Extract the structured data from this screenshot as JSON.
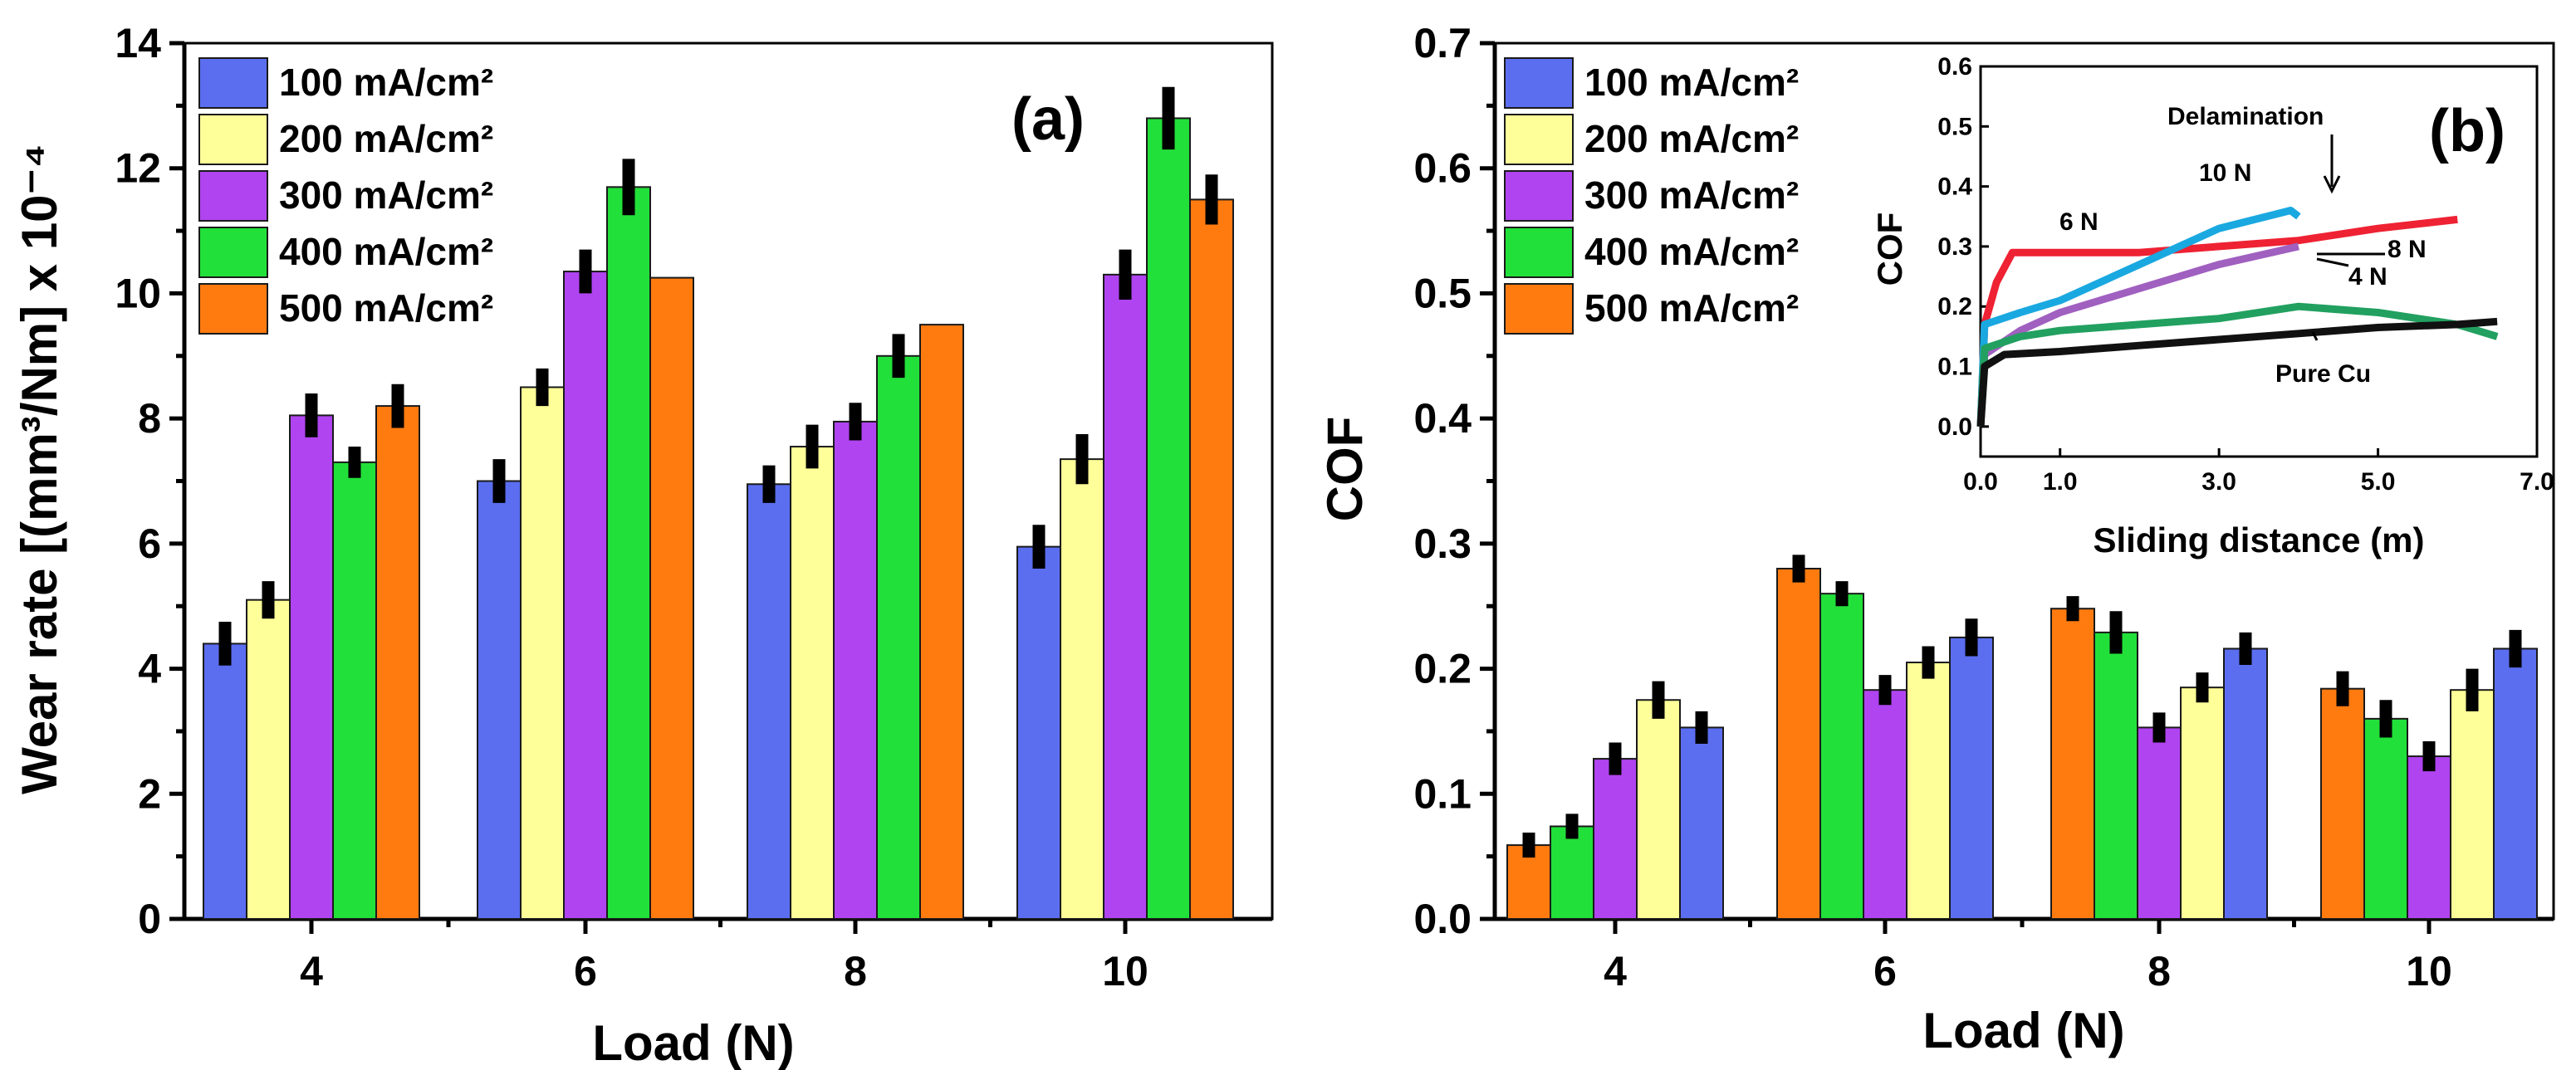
{
  "chart_data": [
    {
      "type": "bar",
      "panel_label": "(a)",
      "categories": [
        "4",
        "6",
        "8",
        "10"
      ],
      "xlabel": "Load (N)",
      "ylabel": "Wear rate [(mm³/Nm] x 10⁻⁴",
      "ylim": [
        0,
        14
      ],
      "yticks": [
        "0",
        "2",
        "4",
        "6",
        "8",
        "10",
        "12",
        "14"
      ],
      "series": [
        {
          "name": "100 mA/cm²",
          "color": "#5b6ef0",
          "values": [
            4.4,
            7.0,
            6.95,
            5.95
          ],
          "errors": [
            0.35,
            0.35,
            0.3,
            0.35
          ]
        },
        {
          "name": "200 mA/cm²",
          "color": "#ffff99",
          "values": [
            5.1,
            8.5,
            7.55,
            7.35
          ],
          "errors": [
            0.3,
            0.3,
            0.35,
            0.4
          ]
        },
        {
          "name": "300 mA/cm²",
          "color": "#b044f0",
          "values": [
            8.05,
            10.35,
            7.95,
            10.3
          ],
          "errors": [
            0.35,
            0.35,
            0.3,
            0.4
          ]
        },
        {
          "name": "400 mA/cm²",
          "color": "#22e03a",
          "values": [
            7.3,
            11.7,
            9.0,
            12.8
          ],
          "errors": [
            0.25,
            0.45,
            0.35,
            0.5
          ]
        },
        {
          "name": "500 mA/cm²",
          "color": "#ff7b10",
          "values": [
            8.2,
            10.25,
            9.5,
            11.5
          ],
          "errors": [
            0.35,
            0.0,
            0.0,
            0.4
          ]
        }
      ],
      "legend": "top-left"
    },
    {
      "type": "bar",
      "panel_label": "(b)",
      "categories": [
        "4",
        "6",
        "8",
        "10"
      ],
      "xlabel": "Load (N)",
      "ylabel": "COF",
      "ylim": [
        0,
        0.7
      ],
      "yticks": [
        "0.0",
        "0.1",
        "0.2",
        "0.3",
        "0.4",
        "0.5",
        "0.6",
        "0.7"
      ],
      "bar_order_within_group": [
        "500 mA/cm²",
        "400 mA/cm²",
        "300 mA/cm²",
        "200 mA/cm²",
        "100 mA/cm²"
      ],
      "series": [
        {
          "name": "100 mA/cm²",
          "color": "#5b6ef0",
          "values": [
            0.153,
            0.225,
            0.216,
            0.216
          ],
          "errors": [
            0.013,
            0.015,
            0.013,
            0.015
          ]
        },
        {
          "name": "200 mA/cm²",
          "color": "#ffff99",
          "values": [
            0.175,
            0.205,
            0.185,
            0.183
          ],
          "errors": [
            0.015,
            0.013,
            0.012,
            0.017
          ]
        },
        {
          "name": "300 mA/cm²",
          "color": "#b044f0",
          "values": [
            0.128,
            0.183,
            0.153,
            0.13
          ],
          "errors": [
            0.013,
            0.012,
            0.012,
            0.012
          ]
        },
        {
          "name": "400 mA/cm²",
          "color": "#22e03a",
          "values": [
            0.074,
            0.26,
            0.229,
            0.16
          ],
          "errors": [
            0.01,
            0.01,
            0.017,
            0.015
          ]
        },
        {
          "name": "500 mA/cm²",
          "color": "#ff7b10",
          "values": [
            0.059,
            0.28,
            0.248,
            0.184
          ],
          "errors": [
            0.01,
            0.011,
            0.01,
            0.014
          ]
        }
      ],
      "legend": "top-left"
    },
    {
      "type": "line",
      "role": "inset of panel (b)",
      "xlabel": "Sliding distance (m)",
      "ylabel": "COF",
      "xlim": [
        0,
        7.0
      ],
      "ylim": [
        -0.05,
        0.6
      ],
      "xticks": [
        "0.0",
        "1.0",
        "3.0",
        "5.0",
        "7.0"
      ],
      "yticks": [
        "0.0",
        "0.1",
        "0.2",
        "0.3",
        "0.4",
        "0.5",
        "0.6"
      ],
      "series": [
        {
          "name": "6 N",
          "color": "#ee2233",
          "x": [
            0.0,
            0.05,
            0.2,
            0.4,
            1.0,
            2.0,
            3.0,
            4.0,
            5.0,
            6.0
          ],
          "y": [
            0.0,
            0.17,
            0.24,
            0.29,
            0.29,
            0.29,
            0.3,
            0.31,
            0.33,
            0.345
          ]
        },
        {
          "name": "10 N",
          "color": "#1aa8e0",
          "x": [
            0.0,
            0.05,
            0.5,
            1.0,
            2.0,
            3.0,
            3.6,
            3.9,
            4.0
          ],
          "y": [
            0.0,
            0.17,
            0.19,
            0.21,
            0.27,
            0.33,
            0.35,
            0.36,
            0.35
          ]
        },
        {
          "name": "8 N",
          "color": "#a060c0",
          "x": [
            0.0,
            0.05,
            0.5,
            1.0,
            2.0,
            3.0,
            4.0
          ],
          "y": [
            0.0,
            0.12,
            0.16,
            0.19,
            0.23,
            0.27,
            0.3
          ]
        },
        {
          "name": "4 N",
          "color": "#22a060",
          "x": [
            0.0,
            0.05,
            0.5,
            1.0,
            2.0,
            3.0,
            4.0,
            5.0,
            6.0,
            6.5
          ],
          "y": [
            0.0,
            0.13,
            0.15,
            0.16,
            0.17,
            0.18,
            0.2,
            0.19,
            0.17,
            0.15
          ]
        },
        {
          "name": "Pure Cu",
          "color": "#111111",
          "x": [
            0.0,
            0.05,
            0.3,
            1.0,
            2.0,
            3.0,
            4.0,
            5.0,
            6.0,
            6.5
          ],
          "y": [
            0.0,
            0.1,
            0.12,
            0.125,
            0.135,
            0.145,
            0.155,
            0.165,
            0.17,
            0.175
          ]
        }
      ],
      "annotations": [
        "Delamination",
        "10 N",
        "6 N",
        "8 N",
        "4 N",
        "Pure Cu"
      ]
    }
  ]
}
